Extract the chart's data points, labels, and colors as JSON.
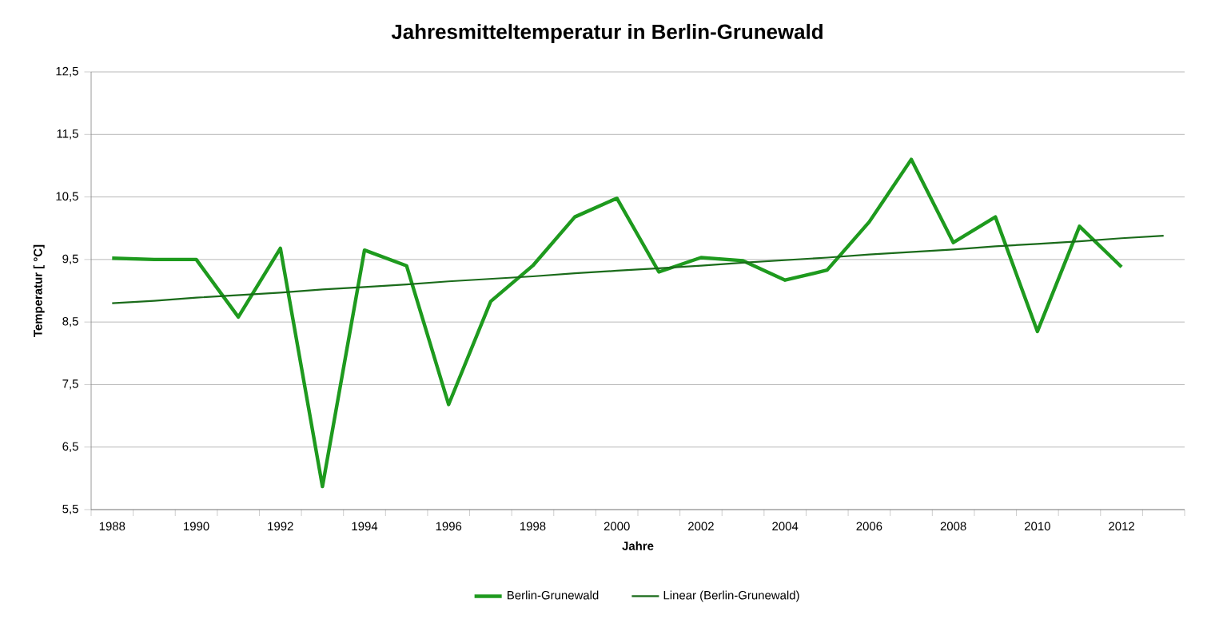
{
  "chart_data": {
    "type": "line",
    "title": "Jahresmitteltemperatur in Berlin-Grunewald",
    "xlabel": "Jahre",
    "ylabel": "Temperatur [ °C]",
    "categories": [
      "1988",
      null,
      "1990",
      null,
      "1992",
      null,
      "1994",
      null,
      "1996",
      null,
      "1998",
      null,
      "2000",
      null,
      "2002",
      null,
      "2004",
      null,
      "2006",
      null,
      "2008",
      null,
      "2010",
      null,
      "2012",
      null
    ],
    "series": [
      {
        "name": "Berlin-Grunewald",
        "color": "#1e9a1e",
        "values": [
          9.52,
          9.5,
          9.5,
          8.58,
          9.68,
          5.87,
          9.65,
          9.4,
          7.18,
          8.83,
          9.4,
          10.18,
          10.48,
          9.3,
          9.53,
          9.48,
          9.17,
          9.33,
          10.1,
          11.1,
          9.77,
          10.18,
          8.35,
          10.03,
          9.38,
          null
        ]
      },
      {
        "name": "Linear (Berlin-Grunewald)",
        "color": "#1a6b1a",
        "values": [
          8.8,
          8.84,
          8.89,
          8.93,
          8.97,
          9.02,
          9.06,
          9.1,
          9.15,
          9.19,
          9.23,
          9.28,
          9.32,
          9.36,
          9.4,
          9.45,
          9.49,
          9.53,
          9.58,
          9.62,
          9.66,
          9.71,
          9.75,
          9.79,
          9.84,
          9.88
        ]
      }
    ],
    "ylim": [
      5.5,
      12.5
    ],
    "yticks": [
      {
        "value": 5.5,
        "label": "5,5"
      },
      {
        "value": 6.5,
        "label": "6,5"
      },
      {
        "value": 7.5,
        "label": "7,5"
      },
      {
        "value": 8.5,
        "label": "8,5"
      },
      {
        "value": 9.5,
        "label": "9,5"
      },
      {
        "value": 10.5,
        "label": "10,5"
      },
      {
        "value": 11.5,
        "label": "11,5"
      },
      {
        "value": 12.5,
        "label": "12,5"
      }
    ],
    "grid": "y",
    "legend": "bottom",
    "marker": "none",
    "line_style": "solid"
  }
}
